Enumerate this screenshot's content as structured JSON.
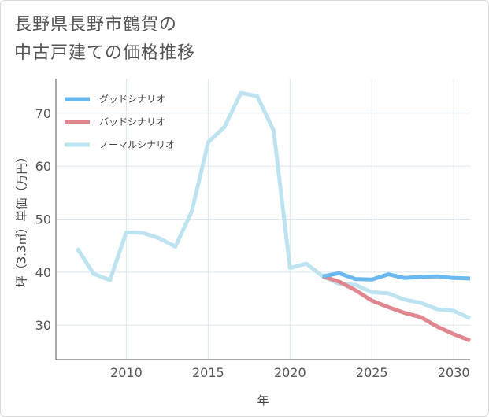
{
  "title": {
    "line1": "長野県長野市鶴賀の",
    "line2": "中古戸建ての価格推移"
  },
  "chart_data": {
    "type": "line",
    "title": "長野県長野市鶴賀の中古戸建ての価格推移",
    "xlabel": "年",
    "ylabel": "坪（3.3㎡）単価（万円）",
    "xlim": [
      2005.7,
      2031
    ],
    "ylim": [
      23.5,
      76.5
    ],
    "xticks": [
      2010,
      2015,
      2020,
      2025,
      2030
    ],
    "yticks": [
      30,
      40,
      50,
      60,
      70
    ],
    "grid": true,
    "legend_position": "top-left",
    "series": [
      {
        "name": "グッドシナリオ",
        "color": "#6ab8ee",
        "x": [
          2022,
          2023,
          2024,
          2025,
          2026,
          2027,
          2028,
          2029,
          2030,
          2031
        ],
        "values": [
          39.2,
          39.8,
          38.7,
          38.6,
          39.6,
          38.9,
          39.1,
          39.2,
          38.9,
          38.8
        ]
      },
      {
        "name": "バッドシナリオ",
        "color": "#e0868e",
        "x": [
          2022,
          2023,
          2024,
          2025,
          2026,
          2027,
          2028,
          2029,
          2030,
          2031
        ],
        "values": [
          39.2,
          38.2,
          36.6,
          34.6,
          33.4,
          32.3,
          31.5,
          29.7,
          28.3,
          27.1
        ]
      },
      {
        "name": "ノーマルシナリオ",
        "color": "#bde3f1",
        "x": [
          2007,
          2008,
          2009,
          2010,
          2011,
          2012,
          2013,
          2014,
          2015,
          2016,
          2017,
          2018,
          2019,
          2020,
          2021,
          2022,
          2023,
          2024,
          2025,
          2026,
          2027,
          2028,
          2029,
          2030,
          2031
        ],
        "values": [
          44.5,
          39.7,
          38.5,
          47.5,
          47.4,
          46.4,
          44.8,
          51.5,
          64.5,
          67.4,
          73.8,
          73.2,
          66.7,
          40.8,
          41.6,
          39.2,
          37.8,
          37.6,
          36.2,
          36.0,
          34.8,
          34.2,
          33.0,
          32.7,
          31.3
        ]
      }
    ]
  }
}
